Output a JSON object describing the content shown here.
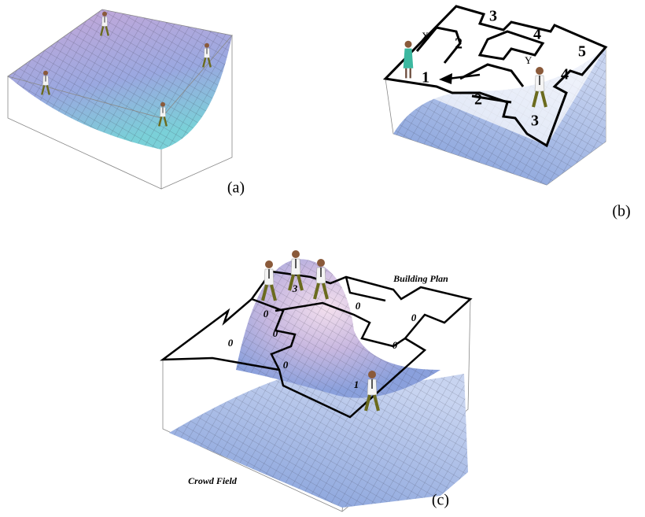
{
  "panels": [
    {
      "caption": "(a)"
    },
    {
      "caption": "(b)",
      "markers": [
        "X",
        "Y"
      ],
      "room_numbers": [
        "3",
        "4",
        "2",
        "5",
        "1",
        "4",
        "2",
        "3"
      ]
    },
    {
      "caption": "(c)",
      "titles": [
        "Building Plan",
        "Crowd Field"
      ],
      "room_values": [
        "3",
        "0",
        "0",
        "0",
        "0",
        "0",
        "0",
        "0",
        "1"
      ]
    }
  ]
}
